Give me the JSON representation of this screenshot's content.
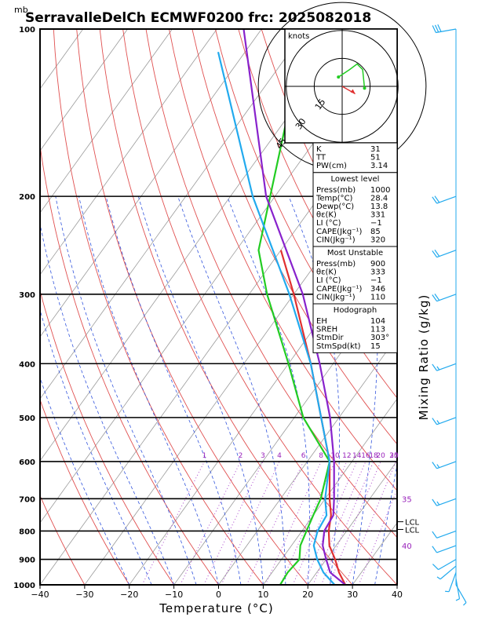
{
  "header": {
    "unit_top": "mb",
    "title": "SerravalleDelCh ECMWF0200 frc: 2025082018"
  },
  "axes": {
    "xlabel": "Temperature (°C)",
    "right_label": "Mixing Ratio (g/kg)",
    "x_ticks": [
      "−40",
      "−30",
      "−20",
      "−10",
      "0",
      "10",
      "20",
      "30",
      "40"
    ],
    "p_ticks": [
      {
        "p": 100,
        "label": "100"
      },
      {
        "p": 200,
        "label": "200"
      },
      {
        "p": 300,
        "label": "300"
      },
      {
        "p": 400,
        "label": "400"
      },
      {
        "p": 500,
        "label": "500"
      },
      {
        "p": 600,
        "label": "600"
      },
      {
        "p": 700,
        "label": "700"
      },
      {
        "p": 800,
        "label": "800"
      },
      {
        "p": 900,
        "label": "900"
      },
      {
        "p": 1000,
        "label": "1000"
      }
    ],
    "mixing_labels": [
      "1",
      "2",
      "3",
      "4",
      "6",
      "8",
      "10",
      "12",
      "14",
      "16",
      "18",
      "20",
      "25",
      "30"
    ],
    "theta_e_labels": [
      {
        "text": "35",
        "p": 700
      },
      {
        "text": "40",
        "p": 850
      }
    ],
    "lcl_labels": [
      {
        "text": "LCL",
        "p": 770
      },
      {
        "text": "LCL",
        "p": 795
      }
    ]
  },
  "hodograph": {
    "unit": "knots",
    "ring_labels": [
      "15",
      "30",
      "45"
    ]
  },
  "indices": {
    "top": [
      {
        "k": "K",
        "v": "31"
      },
      {
        "k": "TT",
        "v": "51"
      },
      {
        "k": "PW(cm)",
        "v": "3.14"
      }
    ],
    "lowest_title": "Lowest level",
    "lowest": [
      {
        "k": "Press(mb)",
        "v": "1000"
      },
      {
        "k": "Temp(°C)",
        "v": "28.4"
      },
      {
        "k": "Dewp(°C)",
        "v": "13.8"
      },
      {
        "k": "θε(K)",
        "v": "331"
      },
      {
        "k": "LI (°C)",
        "v": "−1"
      },
      {
        "k": "CAPE(Jkg⁻¹)",
        "v": "85"
      },
      {
        "k": "CIN(Jkg⁻¹)",
        "v": "320"
      }
    ],
    "unstable_title": "Most Unstable",
    "unstable": [
      {
        "k": "Press(mb)",
        "v": "900"
      },
      {
        "k": "θε(K)",
        "v": "333"
      },
      {
        "k": "LI (°C)",
        "v": "−1"
      },
      {
        "k": "CAPE(Jkg⁻¹)",
        "v": "346"
      },
      {
        "k": "CIN(Jkg⁻¹)",
        "v": "110"
      }
    ],
    "hodo_title": "Hodograph",
    "hodo": [
      {
        "k": "EH",
        "v": "104"
      },
      {
        "k": "SREH",
        "v": "113"
      },
      {
        "k": "StmDir",
        "v": "303°"
      },
      {
        "k": "StmSpd(kt)",
        "v": "15"
      }
    ]
  },
  "chart_data": {
    "type": "line",
    "xlabel": "Temperature (°C)",
    "ylabel": "mb",
    "xlim": [
      -40,
      40
    ],
    "plim": [
      1000,
      100
    ],
    "log_pressure": true,
    "series": [
      {
        "role": "temperature",
        "color": "#e03030",
        "points": [
          [
            1000,
            28.4
          ],
          [
            950,
            25
          ],
          [
            900,
            22
          ],
          [
            850,
            18.5
          ],
          [
            800,
            16
          ],
          [
            750,
            14
          ],
          [
            700,
            11
          ],
          [
            600,
            5
          ],
          [
            500,
            -4
          ],
          [
            400,
            -15
          ],
          [
            300,
            -30
          ],
          [
            250,
            -40
          ]
        ]
      },
      {
        "role": "dewpoint",
        "color": "#22cc22",
        "points": [
          [
            1000,
            13.8
          ],
          [
            950,
            13.5
          ],
          [
            900,
            14
          ],
          [
            850,
            12
          ],
          [
            800,
            11
          ],
          [
            750,
            10
          ],
          [
            700,
            9
          ],
          [
            600,
            5
          ],
          [
            500,
            -8
          ],
          [
            400,
            -20
          ],
          [
            300,
            -36
          ],
          [
            250,
            -45
          ],
          [
            100,
            -70
          ]
        ]
      },
      {
        "role": "parcel",
        "color": "#8822cc",
        "points": [
          [
            1000,
            28.4
          ],
          [
            950,
            23
          ],
          [
            900,
            20
          ],
          [
            850,
            17
          ],
          [
            800,
            15
          ],
          [
            750,
            14.5
          ],
          [
            700,
            12
          ],
          [
            600,
            6
          ],
          [
            500,
            -2
          ],
          [
            400,
            -13
          ],
          [
            300,
            -28
          ],
          [
            200,
            -52
          ],
          [
            100,
            -84
          ]
        ]
      },
      {
        "role": "virtual",
        "color": "#22aaee",
        "points": [
          [
            1000,
            26
          ],
          [
            950,
            21.5
          ],
          [
            900,
            18
          ],
          [
            850,
            15
          ],
          [
            800,
            13.5
          ],
          [
            750,
            13
          ],
          [
            700,
            10
          ],
          [
            600,
            5
          ],
          [
            500,
            -4
          ],
          [
            400,
            -15
          ],
          [
            300,
            -31
          ],
          [
            200,
            -55
          ],
          [
            110,
            -86
          ]
        ]
      }
    ],
    "wind_barbs": [
      {
        "p": 1000,
        "dir": 150,
        "spd": 5
      },
      {
        "p": 975,
        "dir": 170,
        "spd": 5
      },
      {
        "p": 950,
        "dir": 200,
        "spd": 5
      },
      {
        "p": 925,
        "dir": 230,
        "spd": 5
      },
      {
        "p": 900,
        "dir": 240,
        "spd": 10
      },
      {
        "p": 850,
        "dir": 250,
        "spd": 10
      },
      {
        "p": 800,
        "dir": 250,
        "spd": 10
      },
      {
        "p": 700,
        "dir": 250,
        "spd": 15
      },
      {
        "p": 600,
        "dir": 250,
        "spd": 15
      },
      {
        "p": 500,
        "dir": 250,
        "spd": 15
      },
      {
        "p": 400,
        "dir": 250,
        "spd": 15
      },
      {
        "p": 300,
        "dir": 250,
        "spd": 20
      },
      {
        "p": 250,
        "dir": 250,
        "spd": 20
      },
      {
        "p": 200,
        "dir": 250,
        "spd": 20
      },
      {
        "p": 100,
        "dir": 260,
        "spd": 30
      }
    ],
    "hodograph_points": [
      [
        -2,
        5
      ],
      [
        4,
        9
      ],
      [
        8,
        12
      ],
      [
        11,
        9
      ],
      [
        12,
        -1
      ]
    ],
    "storm_motion": [
      7,
      -4
    ]
  }
}
